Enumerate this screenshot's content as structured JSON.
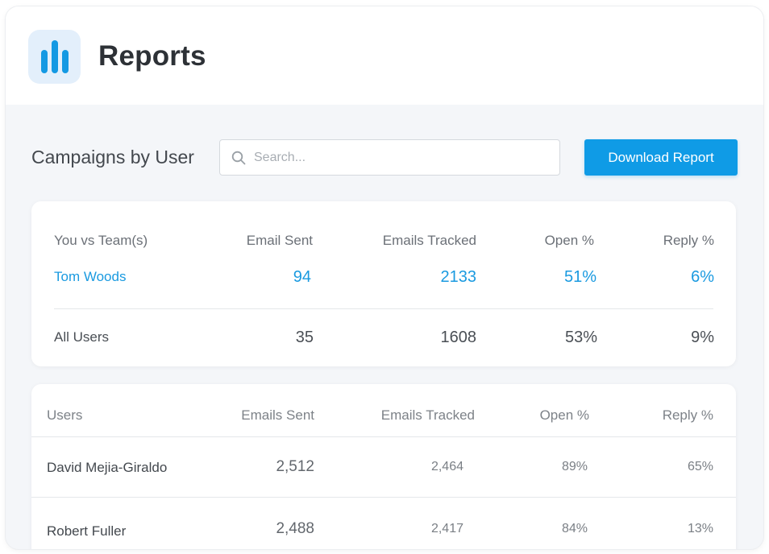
{
  "header": {
    "title": "Reports",
    "icon": "bar-chart-icon"
  },
  "section": {
    "title": "Campaigns by User"
  },
  "search": {
    "placeholder": "Search...",
    "value": ""
  },
  "toolbar": {
    "download_label": "Download Report"
  },
  "comparison": {
    "headers": [
      "You vs Team(s)",
      "Email Sent",
      "Emails Tracked",
      "Open %",
      "Reply %"
    ],
    "rows": [
      {
        "name": "Tom Woods",
        "sent": "94",
        "tracked": "2133",
        "open": "51%",
        "reply": "6%"
      },
      {
        "name": "All Users",
        "sent": "35",
        "tracked": "1608",
        "open": "53%",
        "reply": "9%"
      }
    ]
  },
  "users": {
    "headers": [
      "Users",
      "Emails Sent",
      "Emails Tracked",
      "Open %",
      "Reply %"
    ],
    "rows": [
      {
        "name": "David Mejia-Giraldo",
        "sent": "2,512",
        "tracked": "2,464",
        "open": "89%",
        "reply": "65%"
      },
      {
        "name": "Robert Fuller",
        "sent": "2,488",
        "tracked": "2,417",
        "open": "84%",
        "reply": "13%"
      }
    ]
  },
  "colors": {
    "accent": "#0f9be6",
    "highlight_text": "#1a9ae0",
    "background": "#f4f6f9"
  }
}
